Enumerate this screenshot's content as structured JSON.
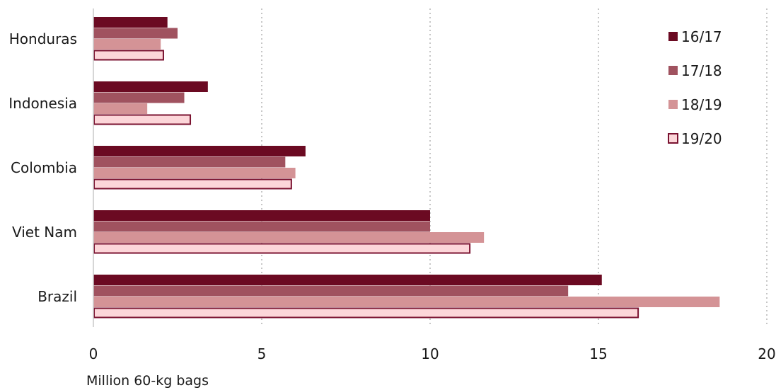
{
  "chart_data": {
    "type": "bar",
    "orientation": "horizontal",
    "categories": [
      "Honduras",
      "Indonesia",
      "Colombia",
      "Viet Nam",
      "Brazil"
    ],
    "series": [
      {
        "name": "16/17",
        "values": [
          2.2,
          3.4,
          6.3,
          10.0,
          15.1
        ],
        "color": "#6b0a22"
      },
      {
        "name": "17/18",
        "values": [
          2.5,
          2.7,
          5.7,
          10.0,
          14.1
        ],
        "color": "#a0525f"
      },
      {
        "name": "18/19",
        "values": [
          2.0,
          1.6,
          6.0,
          11.6,
          18.6
        ],
        "color": "#d49396"
      },
      {
        "name": "19/20",
        "values": [
          2.1,
          2.9,
          5.9,
          11.2,
          16.2
        ],
        "color": "#fcd6d9",
        "outline": "#7a1230"
      }
    ],
    "xticks": [
      "0",
      "5",
      "10",
      "15",
      "20"
    ],
    "xlim": [
      0,
      20
    ],
    "xlabel": "Million 60-kg bags",
    "title": "",
    "grid": "vertical dotted",
    "legend_position": "top-right"
  }
}
